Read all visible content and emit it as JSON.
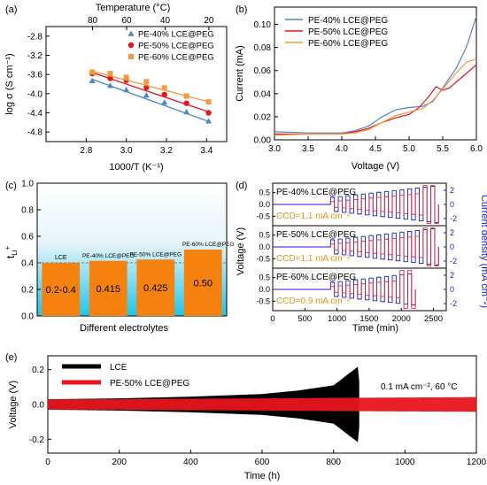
{
  "figure": {
    "panel_labels": [
      "(a)",
      "(b)",
      "(c)",
      "(d)",
      "(e)"
    ]
  },
  "chart_data": [
    {
      "panel": "(a)",
      "type": "scatter",
      "xlabel": "1000/T (K⁻¹)",
      "ylabel": "log σ (S cm⁻¹)",
      "top_axis_label": "Temperature (°C)",
      "xlim": [
        2.6,
        3.5
      ],
      "ylim": [
        -5.0,
        -2.6
      ],
      "x_ticks": [
        2.8,
        3.0,
        3.2,
        3.4
      ],
      "y_ticks": [
        -2.8,
        -3.2,
        -3.6,
        -4.0,
        -4.4,
        -4.8
      ],
      "top_ticks_celsius": [
        80,
        60,
        40,
        20
      ],
      "legend_position": "top-right",
      "series": [
        {
          "name": "PE-40% LCE@PEG",
          "color": "#4f86c6",
          "marker": "triangle",
          "x": [
            2.83,
            2.92,
            3.0,
            3.1,
            3.19,
            3.3,
            3.41
          ],
          "y": [
            -3.73,
            -3.83,
            -3.92,
            -4.03,
            -4.18,
            -4.38,
            -4.57
          ],
          "fit": [
            [
              2.83,
              -3.7
            ],
            [
              3.41,
              -4.58
            ]
          ]
        },
        {
          "name": "PE-50% LCE@PEG",
          "color": "#e8141c",
          "marker": "circle",
          "x": [
            2.83,
            2.92,
            3.0,
            3.1,
            3.19,
            3.3,
            3.41
          ],
          "y": [
            -3.58,
            -3.68,
            -3.72,
            -3.87,
            -4.02,
            -4.2,
            -4.4
          ],
          "fit": [
            [
              2.83,
              -3.56
            ],
            [
              3.41,
              -4.38
            ]
          ]
        },
        {
          "name": "PE-60% LCE@PEG",
          "color": "#f29a3c",
          "marker": "square",
          "x": [
            2.83,
            2.92,
            3.0,
            3.1,
            3.19,
            3.3,
            3.41
          ],
          "y": [
            -3.55,
            -3.58,
            -3.66,
            -3.75,
            -3.88,
            -4.05,
            -4.17
          ],
          "fit": [
            [
              2.83,
              -3.53
            ],
            [
              3.41,
              -4.17
            ]
          ]
        }
      ]
    },
    {
      "panel": "(b)",
      "type": "line",
      "xlabel": "Voltage (V)",
      "ylabel": "Current (mA)",
      "xlim": [
        3.0,
        6.0
      ],
      "ylim": [
        0.0,
        0.115
      ],
      "x_ticks": [
        3.0,
        3.5,
        4.0,
        4.5,
        5.0,
        5.5,
        6.0
      ],
      "y_ticks": [
        0.0,
        0.02,
        0.04,
        0.06,
        0.08,
        0.1
      ],
      "legend_position": "top-left",
      "series": [
        {
          "name": "PE-40% LCE@PEG",
          "color": "#4f86c6",
          "x": [
            3.0,
            3.5,
            4.0,
            4.2,
            4.4,
            4.6,
            4.8,
            5.0,
            5.2,
            5.35,
            5.5,
            5.7,
            5.85,
            6.0
          ],
          "y": [
            0.007,
            0.006,
            0.006,
            0.008,
            0.012,
            0.02,
            0.026,
            0.028,
            0.029,
            0.033,
            0.045,
            0.062,
            0.08,
            0.107
          ]
        },
        {
          "name": "PE-50% LCE@PEG",
          "color": "#e8141c",
          "x": [
            3.0,
            3.5,
            4.0,
            4.2,
            4.4,
            4.6,
            4.8,
            5.0,
            5.15,
            5.3,
            5.4,
            5.5,
            5.6,
            5.8,
            6.0
          ],
          "y": [
            0.005,
            0.005,
            0.005,
            0.007,
            0.01,
            0.015,
            0.019,
            0.022,
            0.028,
            0.038,
            0.046,
            0.043,
            0.045,
            0.055,
            0.065
          ]
        },
        {
          "name": "PE-60% LCE@PEG",
          "color": "#f29a3c",
          "x": [
            3.0,
            3.5,
            4.0,
            4.2,
            4.4,
            4.6,
            4.8,
            5.0,
            5.2,
            5.35,
            5.5,
            5.7,
            5.85,
            6.0
          ],
          "y": [
            0.004,
            0.005,
            0.005,
            0.006,
            0.009,
            0.015,
            0.021,
            0.024,
            0.027,
            0.034,
            0.044,
            0.058,
            0.067,
            0.07
          ]
        }
      ]
    },
    {
      "panel": "(c)",
      "type": "bar",
      "xlabel": "Different electrolytes",
      "ylabel": "t",
      "ylabel_subscript": "Li",
      "ylabel_superscript": "+",
      "ylim": [
        0.0,
        1.0
      ],
      "y_ticks": [
        0.0,
        0.2,
        0.4,
        0.6,
        0.8,
        1.0
      ],
      "reference_line": 0.4,
      "bar_color": "#f5820f",
      "categories": [
        "LCE",
        "PE-40% LCE@PEG",
        "PE-50% LCE@PEG",
        "PE-60% LCE@PEG"
      ],
      "values": [
        0.4,
        0.415,
        0.425,
        0.5
      ],
      "value_labels": [
        "0.2-0.4",
        "0.415",
        "0.425",
        "0.50"
      ]
    },
    {
      "panel": "(d)",
      "type": "line",
      "xlabel": "Time (min)",
      "ylabel": "Voltage (V)",
      "y2label": "Current density (mA cm⁻²)",
      "xlim": [
        0,
        2700
      ],
      "x_ticks": [
        0,
        500,
        1000,
        1500,
        2000,
        2500
      ],
      "sub_y_ticks": [
        0.5,
        0.0,
        -0.5
      ],
      "sub_y2_ticks": [
        2,
        0,
        -2
      ],
      "subplots": [
        {
          "name": "PE-40% LCE@PEG",
          "ccd_label": "CCD=1.1 mA cm⁻²",
          "failure_time": 2320
        },
        {
          "name": "PE-50% LCE@PEG",
          "ccd_label": "CCD=1.1 mA cm⁻²",
          "failure_time": 2320
        },
        {
          "name": "PE-60% LCE@PEG",
          "ccd_label": "CCD=0.9 mA cm⁻²",
          "failure_time": 1900
        }
      ],
      "current_color": "#1a1ac8",
      "voltage_color": "#e8141c"
    },
    {
      "panel": "(e)",
      "type": "line",
      "xlabel": "Time (h)",
      "ylabel": "Voltage (V)",
      "xlim": [
        0,
        1200
      ],
      "ylim": [
        -0.28,
        0.28
      ],
      "x_ticks": [
        0,
        200,
        400,
        600,
        800,
        1000,
        1200
      ],
      "y_ticks": [
        0.2,
        0.0,
        -0.2
      ],
      "condition_label": "0.1 mA cm⁻², 60 °C",
      "legend_position": "top-left",
      "series": [
        {
          "name": "LCE",
          "color": "#000000",
          "x": [
            0,
            200,
            400,
            600,
            700,
            800,
            870,
            875
          ],
          "amplitude": [
            0.03,
            0.035,
            0.045,
            0.06,
            0.08,
            0.11,
            0.22,
            0.0
          ]
        },
        {
          "name": "PE-50% LCE@PEG",
          "color": "#e8141c",
          "x": [
            0,
            200,
            400,
            600,
            800,
            1000,
            1200
          ],
          "amplitude": [
            0.03,
            0.03,
            0.033,
            0.035,
            0.038,
            0.04,
            0.042
          ]
        }
      ]
    }
  ]
}
